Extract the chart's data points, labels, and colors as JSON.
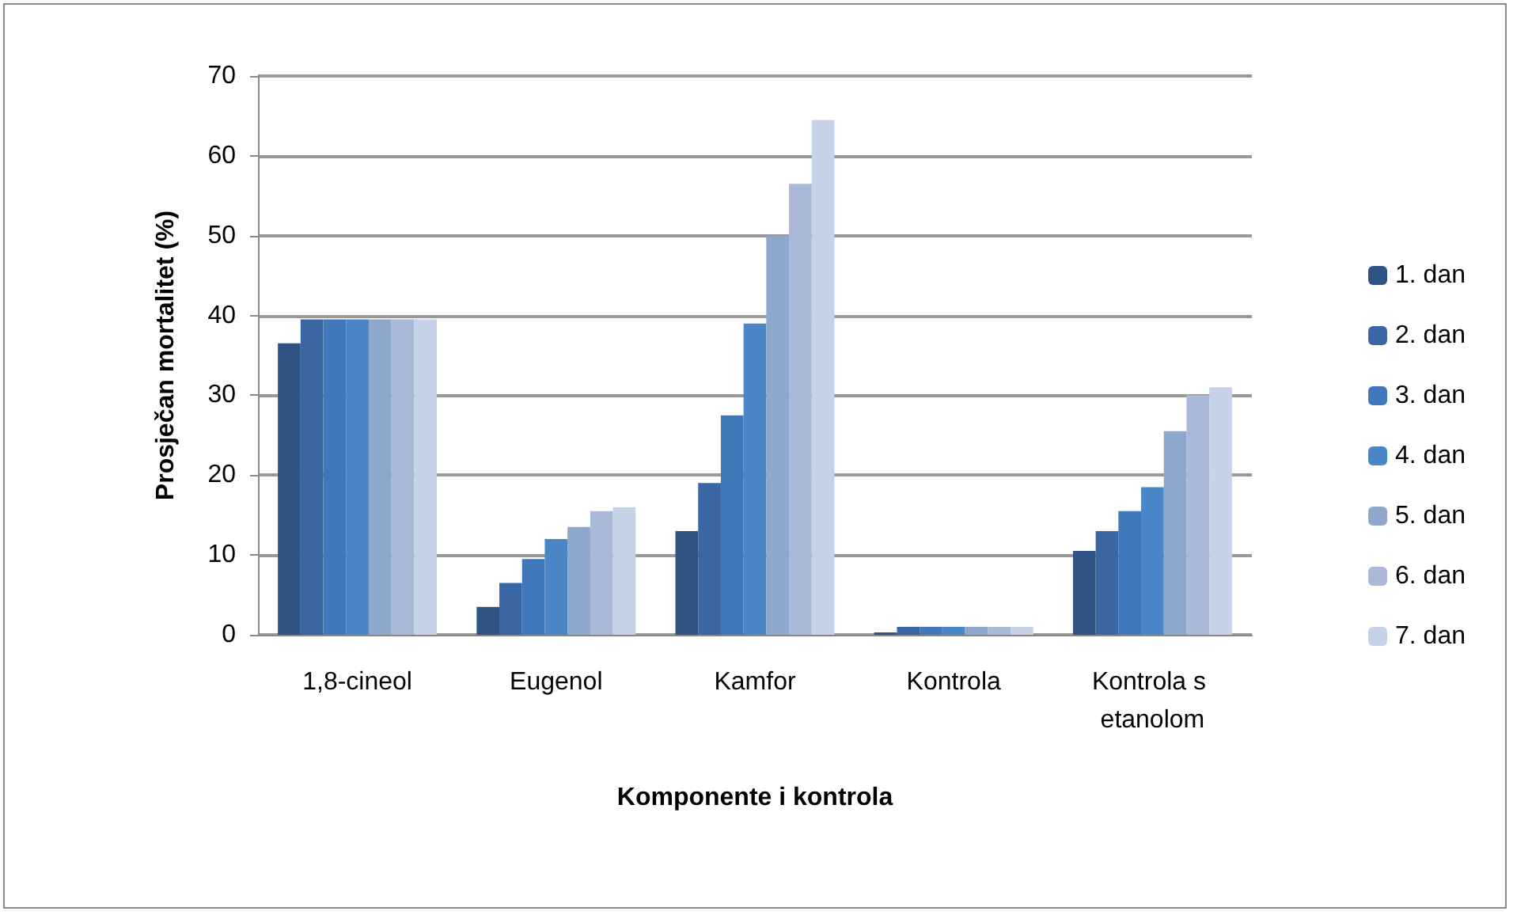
{
  "chart_data": {
    "type": "bar",
    "xlabel": "Komponente i kontrola",
    "ylabel": "Prosječan mortalitet (%)",
    "categories": [
      "1,8-cineol",
      "Eugenol",
      "Kamfor",
      "Kontrola",
      "Kontrola s etanolom"
    ],
    "series": [
      {
        "name": "1. dan",
        "color": "#2f5383",
        "values": [
          36.5,
          3.5,
          13,
          0.3,
          10.5
        ]
      },
      {
        "name": "2. dan",
        "color": "#3a67a3",
        "values": [
          39.5,
          6.5,
          19,
          1,
          13
        ]
      },
      {
        "name": "3. dan",
        "color": "#4177bb",
        "values": [
          39.5,
          9.5,
          27.5,
          1,
          15.5
        ]
      },
      {
        "name": "4. dan",
        "color": "#4a86c8",
        "values": [
          39.5,
          12,
          39,
          1,
          18.5
        ]
      },
      {
        "name": "5. dan",
        "color": "#8ea7cc",
        "values": [
          39.5,
          13.5,
          50,
          1,
          25.5
        ]
      },
      {
        "name": "6. dan",
        "color": "#aab9d8",
        "values": [
          39.5,
          15.5,
          56.5,
          1,
          30
        ]
      },
      {
        "name": "7. dan",
        "color": "#c6d2e8",
        "values": [
          39.5,
          16,
          64.5,
          1,
          31
        ]
      }
    ],
    "ylim": [
      0,
      70
    ],
    "yticks": [
      0,
      10,
      20,
      30,
      40,
      50,
      60,
      70
    ],
    "grid": "y",
    "legend": "right"
  }
}
